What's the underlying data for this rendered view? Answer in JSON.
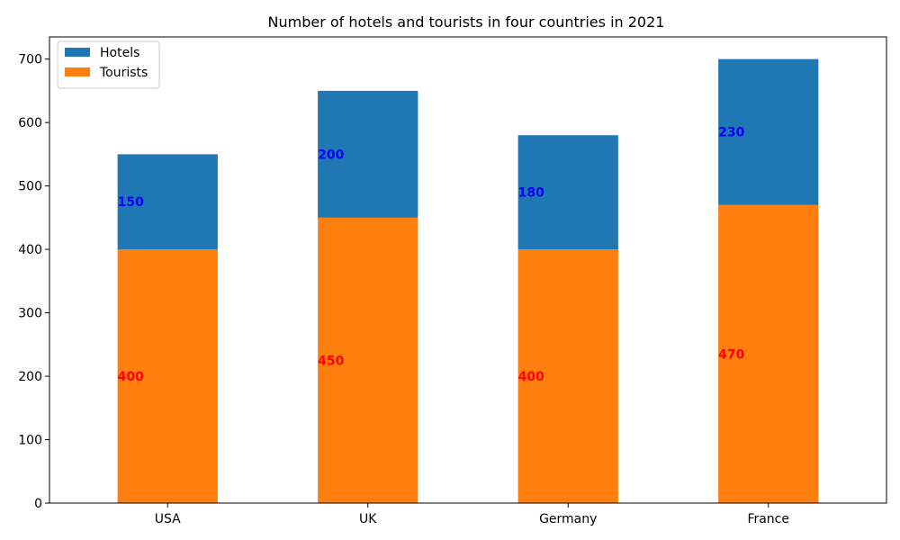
{
  "chart_data": {
    "type": "bar",
    "stacked": true,
    "title": "Number of hotels and tourists in four countries in 2021",
    "xlabel": "",
    "ylabel": "",
    "categories": [
      "USA",
      "UK",
      "Germany",
      "France"
    ],
    "series": [
      {
        "name": "Tourists",
        "values": [
          400,
          450,
          400,
          470
        ],
        "color": "#ff7f0e",
        "label_color": "#ff0000"
      },
      {
        "name": "Hotels",
        "values": [
          150,
          200,
          180,
          230
        ],
        "color": "#1f77b4",
        "label_color": "#0000ff"
      }
    ],
    "legend_order": [
      "Hotels",
      "Tourists"
    ],
    "yticks": [
      0,
      100,
      200,
      300,
      400,
      500,
      600,
      700
    ],
    "ylim": [
      0,
      735
    ],
    "grid": false,
    "legend_position": "top-left"
  }
}
